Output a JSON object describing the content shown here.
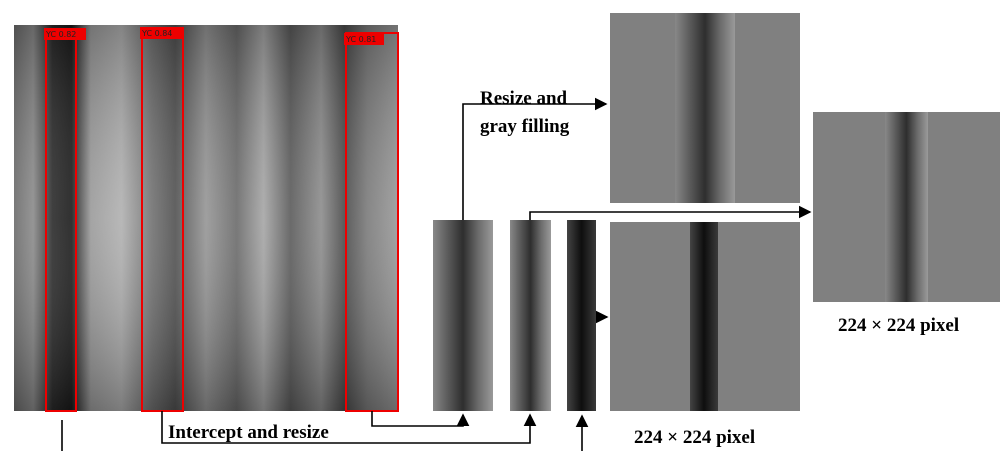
{
  "detections": [
    {
      "label": "YC 0.82"
    },
    {
      "label": "YC 0.84"
    },
    {
      "label": "YC 0.81"
    }
  ],
  "steps": {
    "resize_fill": [
      "Resize and",
      "gray filling"
    ],
    "intercept": "Intercept and resize"
  },
  "outputs": [
    {
      "caption": "224 × 224 pixel"
    },
    {
      "caption": "224 × 224 pixel"
    }
  ]
}
